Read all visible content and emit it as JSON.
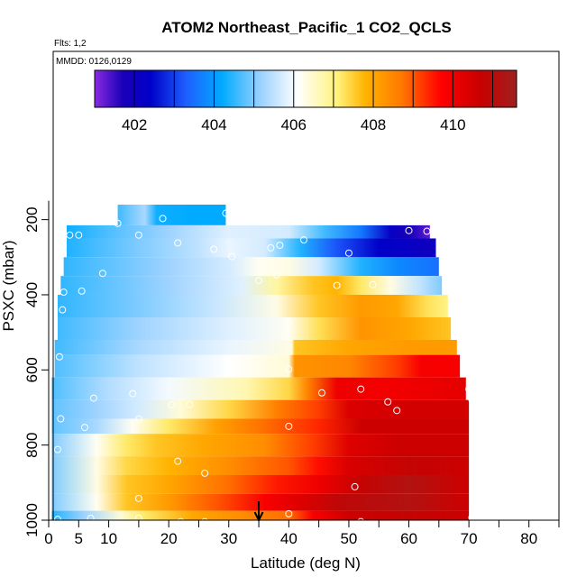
{
  "chart_data": {
    "type": "heatmap",
    "title": "ATOM2 Northeast_Pacific_1 CO2_QCLS",
    "flights_label": "Flts: 1,2",
    "dates_label": "MMDD: 0126,0129",
    "xlabel": "Latitude (deg N)",
    "ylabel": "PSXC (mbar)",
    "xlim": [
      0,
      85
    ],
    "ylim": [
      1000,
      0
    ],
    "x_ticks": [
      0,
      5,
      10,
      20,
      30,
      40,
      50,
      60,
      70,
      80
    ],
    "x_tick_labels": [
      "0",
      "5",
      "10",
      "20",
      "30",
      "40",
      "50",
      "60",
      "70",
      "80"
    ],
    "x_minor_ticks": [
      15,
      25,
      35,
      45,
      55,
      65,
      75,
      85
    ],
    "y_ticks": [
      200,
      400,
      600,
      800,
      1000
    ],
    "y_tick_labels": [
      "200",
      "400",
      "600",
      "800",
      "1000"
    ],
    "colorbar": {
      "min": 401,
      "max": 411.6,
      "ticks": [
        402,
        404,
        406,
        408,
        410
      ],
      "tick_labels": [
        "402",
        "404",
        "406",
        "408",
        "410"
      ],
      "stops": [
        {
          "v": 401.0,
          "c": "#8a2be2"
        },
        {
          "v": 401.7,
          "c": "#1a00b8"
        },
        {
          "v": 402.4,
          "c": "#0000c8"
        },
        {
          "v": 403.3,
          "c": "#1e5fff"
        },
        {
          "v": 404.2,
          "c": "#00aaff"
        },
        {
          "v": 405.2,
          "c": "#9fd3ff"
        },
        {
          "v": 406.1,
          "c": "#ffffff"
        },
        {
          "v": 407.1,
          "c": "#fff27a"
        },
        {
          "v": 407.8,
          "c": "#ffb300"
        },
        {
          "v": 408.7,
          "c": "#ff7a00"
        },
        {
          "v": 409.7,
          "c": "#ff0000"
        },
        {
          "v": 410.7,
          "c": "#c80000"
        },
        {
          "v": 411.6,
          "c": "#a0201e"
        }
      ]
    },
    "arrow_latitude": 35,
    "rows": [
      {
        "p_top": 160,
        "p_bot": 215,
        "lat_start": 11.5,
        "lat_end": 29.5,
        "profile": [
          [
            11.5,
            404.6
          ],
          [
            16,
            405.3
          ],
          [
            18,
            404.3
          ],
          [
            24,
            404.2
          ],
          [
            29.5,
            404.2
          ]
        ]
      },
      {
        "p_top": 215,
        "p_bot": 250,
        "lat_start": 3,
        "lat_end": 63.5,
        "profile": [
          [
            3,
            404.3
          ],
          [
            12,
            404.8
          ],
          [
            20,
            405.2
          ],
          [
            30,
            405.8
          ],
          [
            40,
            405.7
          ],
          [
            46,
            404.6
          ],
          [
            52,
            403.6
          ],
          [
            57,
            402.2
          ],
          [
            60,
            401.8
          ],
          [
            63.5,
            401.3
          ]
        ]
      },
      {
        "p_top": 250,
        "p_bot": 300,
        "lat_start": 3,
        "lat_end": 64.5,
        "profile": [
          [
            3,
            404.4
          ],
          [
            15,
            405.0
          ],
          [
            25,
            405.5
          ],
          [
            30,
            405.9
          ],
          [
            36,
            405.7
          ],
          [
            42,
            404.4
          ],
          [
            48,
            403.2
          ],
          [
            55,
            402.4
          ],
          [
            64.5,
            402.0
          ]
        ]
      },
      {
        "p_top": 300,
        "p_bot": 350,
        "lat_start": 2.5,
        "lat_end": 65,
        "profile": [
          [
            2.5,
            404.5
          ],
          [
            20,
            405.2
          ],
          [
            30,
            405.7
          ],
          [
            35,
            406.2
          ],
          [
            40,
            406.3
          ],
          [
            45,
            405.7
          ],
          [
            52,
            404.4
          ],
          [
            58,
            403.8
          ],
          [
            65,
            403.5
          ]
        ]
      },
      {
        "p_top": 350,
        "p_bot": 400,
        "lat_start": 2,
        "lat_end": 65.5,
        "profile": [
          [
            2,
            404.5
          ],
          [
            20,
            405.2
          ],
          [
            32,
            405.8
          ],
          [
            38,
            406.8
          ],
          [
            44,
            407.6
          ],
          [
            48,
            407.8
          ],
          [
            52,
            407.2
          ],
          [
            57,
            406.3
          ],
          [
            62,
            405.5
          ],
          [
            65.5,
            405.0
          ]
        ]
      },
      {
        "p_top": 400,
        "p_bot": 460,
        "lat_start": 1.5,
        "lat_end": 66.5,
        "profile": [
          [
            1.5,
            404.5
          ],
          [
            15,
            405.0
          ],
          [
            28,
            405.6
          ],
          [
            38,
            406.3
          ],
          [
            45,
            407.6
          ],
          [
            52,
            408.2
          ],
          [
            58,
            408.0
          ],
          [
            63,
            407.3
          ],
          [
            66.5,
            407.0
          ]
        ]
      },
      {
        "p_top": 460,
        "p_bot": 520,
        "lat_start": 1.5,
        "lat_end": 67,
        "profile": [
          [
            1.5,
            404.6
          ],
          [
            15,
            405.2
          ],
          [
            30,
            405.8
          ],
          [
            40,
            406.2
          ],
          [
            45,
            407.3
          ],
          [
            52,
            408.3
          ],
          [
            60,
            408.0
          ],
          [
            67,
            407.6
          ]
        ]
      },
      {
        "p_top": 520,
        "p_bot": 560,
        "lat_start": 1,
        "lat_end": 68,
        "profile": [
          [
            1,
            404.6
          ],
          [
            15,
            405.3
          ],
          [
            30,
            405.9
          ],
          [
            40.5,
            406.3
          ],
          [
            41,
            407.6
          ],
          [
            50,
            408.0
          ],
          [
            60,
            408.2
          ],
          [
            68,
            408.2
          ]
        ]
      },
      {
        "p_top": 560,
        "p_bot": 620,
        "lat_start": 1,
        "lat_end": 68.5,
        "profile": [
          [
            1,
            404.7
          ],
          [
            15,
            405.5
          ],
          [
            30,
            406.1
          ],
          [
            40,
            406.4
          ],
          [
            41,
            408.3
          ],
          [
            50,
            408.5
          ],
          [
            58,
            409.2
          ],
          [
            62,
            409.8
          ],
          [
            68.5,
            409.8
          ]
        ]
      },
      {
        "p_top": 620,
        "p_bot": 680,
        "lat_start": 0.5,
        "lat_end": 69.5,
        "profile": [
          [
            0.5,
            404.7
          ],
          [
            10,
            405.4
          ],
          [
            20,
            406.0
          ],
          [
            33,
            406.7
          ],
          [
            40,
            407.4
          ],
          [
            43,
            408.5
          ],
          [
            48,
            410.0
          ],
          [
            55,
            409.9
          ],
          [
            62,
            410.0
          ],
          [
            69.5,
            410.2
          ]
        ]
      },
      {
        "p_top": 680,
        "p_bot": 730,
        "lat_start": 0.5,
        "lat_end": 70,
        "profile": [
          [
            0.5,
            404.8
          ],
          [
            8,
            405.2
          ],
          [
            15,
            405.7
          ],
          [
            22,
            406.4
          ],
          [
            30,
            407.4
          ],
          [
            38,
            408.6
          ],
          [
            45,
            409.2
          ],
          [
            50,
            410.4
          ],
          [
            60,
            410.5
          ],
          [
            70,
            410.5
          ]
        ]
      },
      {
        "p_top": 730,
        "p_bot": 770,
        "lat_start": 0.5,
        "lat_end": 70,
        "profile": [
          [
            0.5,
            404.8
          ],
          [
            8,
            405.3
          ],
          [
            14,
            406.2
          ],
          [
            20,
            407.2
          ],
          [
            28,
            408.1
          ],
          [
            36,
            408.8
          ],
          [
            45,
            409.4
          ],
          [
            52,
            410.6
          ],
          [
            60,
            410.6
          ],
          [
            70,
            410.6
          ]
        ]
      },
      {
        "p_top": 770,
        "p_bot": 830,
        "lat_start": 0.5,
        "lat_end": 70,
        "profile": [
          [
            0.5,
            405.0
          ],
          [
            8,
            406.2
          ],
          [
            13,
            407.2
          ],
          [
            18,
            407.6
          ],
          [
            26,
            408.0
          ],
          [
            36,
            408.4
          ],
          [
            44,
            409.2
          ],
          [
            50,
            410.3
          ],
          [
            58,
            410.6
          ],
          [
            70,
            410.6
          ]
        ]
      },
      {
        "p_top": 830,
        "p_bot": 880,
        "lat_start": 0.5,
        "lat_end": 70,
        "profile": [
          [
            0.5,
            405.0
          ],
          [
            8,
            406.3
          ],
          [
            13,
            407.4
          ],
          [
            20,
            407.8
          ],
          [
            30,
            408.4
          ],
          [
            40,
            409.0
          ],
          [
            45,
            409.6
          ],
          [
            50,
            410.4
          ],
          [
            60,
            410.8
          ],
          [
            70,
            410.6
          ]
        ]
      },
      {
        "p_top": 880,
        "p_bot": 930,
        "lat_start": 0.5,
        "lat_end": 70,
        "profile": [
          [
            0.5,
            405.0
          ],
          [
            8,
            406.3
          ],
          [
            13,
            407.6
          ],
          [
            20,
            408.0
          ],
          [
            30,
            408.8
          ],
          [
            38,
            409.5
          ],
          [
            45,
            410.0
          ],
          [
            52,
            410.8
          ],
          [
            60,
            411.2
          ],
          [
            70,
            410.6
          ]
        ]
      },
      {
        "p_top": 930,
        "p_bot": 975,
        "lat_start": 0.5,
        "lat_end": 70,
        "profile": [
          [
            0.5,
            405.0
          ],
          [
            8,
            406.2
          ],
          [
            13,
            407.6
          ],
          [
            20,
            408.2
          ],
          [
            28,
            409.0
          ],
          [
            36,
            409.8
          ],
          [
            42,
            410.3
          ],
          [
            48,
            410.9
          ],
          [
            60,
            411.2
          ],
          [
            70,
            410.6
          ]
        ]
      },
      {
        "p_top": 975,
        "p_bot": 1005,
        "lat_start": 0.5,
        "lat_end": 70,
        "profile": [
          [
            0.5,
            404.4
          ],
          [
            6,
            405.2
          ],
          [
            12,
            406.4
          ],
          [
            16,
            407.2
          ],
          [
            24,
            408.0
          ],
          [
            32,
            408.4
          ],
          [
            40,
            408.8
          ],
          [
            44,
            409.8
          ],
          [
            50,
            410.6
          ],
          [
            60,
            410.8
          ],
          [
            70,
            410.6
          ]
        ]
      }
    ],
    "sample_points": [
      [
        11.5,
        210
      ],
      [
        19,
        197
      ],
      [
        29.5,
        183
      ],
      [
        3.5,
        241
      ],
      [
        5,
        241
      ],
      [
        15,
        241
      ],
      [
        21.5,
        262
      ],
      [
        27.5,
        279
      ],
      [
        30.5,
        298
      ],
      [
        37,
        275
      ],
      [
        38.5,
        268
      ],
      [
        42.5,
        254
      ],
      [
        50,
        289
      ],
      [
        60,
        229
      ],
      [
        63,
        231
      ],
      [
        9,
        343
      ],
      [
        35,
        362
      ],
      [
        38,
        347
      ],
      [
        2.5,
        393
      ],
      [
        5.5,
        390
      ],
      [
        48,
        375
      ],
      [
        54,
        373
      ],
      [
        40,
        475
      ],
      [
        2.3,
        440
      ],
      [
        1.8,
        565
      ],
      [
        40,
        598
      ],
      [
        14,
        663
      ],
      [
        7.5,
        675
      ],
      [
        20.5,
        693
      ],
      [
        23.5,
        692
      ],
      [
        45.5,
        661
      ],
      [
        52,
        651
      ],
      [
        56.5,
        685
      ],
      [
        58,
        708
      ],
      [
        70,
        651
      ],
      [
        70.5,
        679
      ],
      [
        2,
        730
      ],
      [
        6,
        753
      ],
      [
        15,
        731
      ],
      [
        40,
        750
      ],
      [
        1.5,
        812
      ],
      [
        21.5,
        843
      ],
      [
        26,
        875
      ],
      [
        51,
        911
      ],
      [
        15,
        942
      ],
      [
        1.5,
        998
      ],
      [
        7,
        995
      ],
      [
        15,
        995
      ],
      [
        22,
        1004
      ],
      [
        26,
        1004
      ],
      [
        40,
        983
      ],
      [
        46,
        1015
      ],
      [
        52,
        1004
      ],
      [
        56,
        1011
      ],
      [
        70.5,
        993
      ]
    ]
  }
}
